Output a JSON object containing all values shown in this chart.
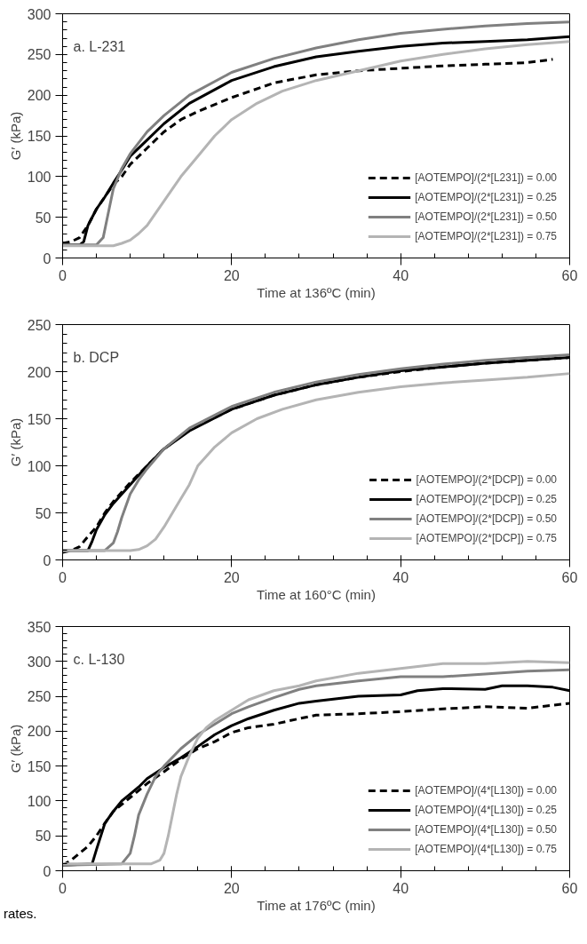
{
  "chart_data": [
    {
      "type": "line",
      "xlabel": "Time at 136ºC (min)",
      "ylabel": "G′ (kPa)",
      "annotations": [
        "a. L-231"
      ],
      "xlim": [
        0,
        60
      ],
      "xticks": [
        0,
        20,
        40,
        60
      ],
      "ylim": [
        0,
        300
      ],
      "yticks": [
        0,
        50,
        100,
        150,
        200,
        250,
        300
      ],
      "grid": false,
      "legend": "bottom right",
      "marker": "none",
      "series": [
        {
          "name": "[AOTEMPO]/(2*[L231]) = 0.00",
          "color": "#000000",
          "line_style": "dashed",
          "x": [
            0,
            1,
            2,
            3,
            4,
            5,
            6,
            7,
            8,
            10,
            12,
            14,
            16,
            20,
            25,
            30,
            35,
            40,
            45,
            50,
            55,
            58
          ],
          "values": [
            18,
            20,
            25,
            40,
            60,
            75,
            90,
            100,
            115,
            135,
            155,
            170,
            180,
            197,
            215,
            225,
            230,
            233,
            236,
            238,
            240,
            244
          ]
        },
        {
          "name": "[AOTEMPO]/(2*[L231]) = 0.25",
          "color": "#000000",
          "line_style": "solid",
          "x": [
            0,
            2,
            2.5,
            3,
            4,
            5,
            6,
            7,
            8,
            10,
            12,
            15,
            20,
            25,
            30,
            35,
            40,
            45,
            50,
            55,
            60
          ],
          "values": [
            16,
            16,
            20,
            40,
            60,
            75,
            92,
            108,
            125,
            145,
            165,
            190,
            218,
            235,
            247,
            254,
            260,
            264,
            266,
            268,
            272
          ]
        },
        {
          "name": "[AOTEMPO]/(2*[L231]) = 0.50",
          "color": "#808080",
          "line_style": "solid",
          "x": [
            0,
            4,
            4.8,
            5.5,
            6,
            7,
            8,
            10,
            12,
            15,
            20,
            25,
            30,
            35,
            40,
            45,
            50,
            55,
            60
          ],
          "values": [
            16,
            16,
            25,
            60,
            85,
            110,
            128,
            155,
            175,
            200,
            228,
            245,
            258,
            268,
            276,
            281,
            285,
            288,
            290
          ]
        },
        {
          "name": "[AOTEMPO]/(2*[L231]) = 0.75",
          "color": "#b4b4b4",
          "line_style": "solid",
          "x": [
            0,
            6,
            7,
            8,
            9,
            10,
            11,
            12,
            14,
            16,
            18,
            20,
            23,
            26,
            30,
            35,
            40,
            45,
            50,
            55,
            60
          ],
          "values": [
            15,
            15,
            18,
            22,
            30,
            40,
            55,
            70,
            100,
            125,
            150,
            170,
            190,
            205,
            218,
            230,
            242,
            250,
            257,
            262,
            266
          ]
        }
      ]
    },
    {
      "type": "line",
      "xlabel": "Time at 160°C (min)",
      "ylabel": "G′ (kPa)",
      "annotations": [
        "b. DCP"
      ],
      "xlim": [
        0,
        60
      ],
      "xticks": [
        0,
        20,
        40,
        60
      ],
      "ylim": [
        0,
        250
      ],
      "yticks": [
        0,
        50,
        100,
        150,
        200,
        250
      ],
      "grid": false,
      "legend": "bottom right",
      "marker": "none",
      "series": [
        {
          "name": "[AOTEMPO]/(2*[DCP]) = 0.00",
          "color": "#000000",
          "line_style": "dashed",
          "x": [
            0,
            1,
            2,
            3,
            4,
            5,
            6,
            8,
            10,
            12,
            15,
            20,
            25,
            30,
            35,
            40,
            45,
            50,
            55,
            60
          ],
          "values": [
            8,
            10,
            14,
            25,
            35,
            50,
            62,
            82,
            100,
            118,
            138,
            160,
            175,
            186,
            194,
            200,
            205,
            209,
            212,
            215
          ]
        },
        {
          "name": "[AOTEMPO]/(2*[DCP]) = 0.25",
          "color": "#000000",
          "line_style": "solid",
          "x": [
            0,
            3,
            3.5,
            4,
            5,
            6,
            8,
            10,
            12,
            15,
            20,
            25,
            30,
            35,
            40,
            45,
            50,
            55,
            60
          ],
          "values": [
            10,
            10,
            20,
            32,
            48,
            60,
            80,
            100,
            118,
            137,
            160,
            175,
            186,
            194,
            201,
            205,
            209,
            212,
            215
          ]
        },
        {
          "name": "[AOTEMPO]/(2*[DCP]) = 0.50",
          "color": "#808080",
          "line_style": "solid",
          "x": [
            0,
            5,
            6,
            6.5,
            7,
            8,
            9,
            10,
            12,
            15,
            20,
            25,
            30,
            35,
            40,
            45,
            50,
            55,
            60
          ],
          "values": [
            10,
            10,
            18,
            30,
            45,
            70,
            85,
            97,
            118,
            140,
            163,
            178,
            189,
            197,
            203,
            208,
            212,
            215,
            218
          ]
        },
        {
          "name": "[AOTEMPO]/(2*[DCP]) = 0.75",
          "color": "#b4b4b4",
          "line_style": "solid",
          "x": [
            0,
            8,
            9,
            10,
            11,
            12,
            13,
            14,
            15,
            16,
            18,
            20,
            23,
            26,
            30,
            35,
            40,
            45,
            50,
            55,
            60
          ],
          "values": [
            10,
            10,
            11,
            15,
            22,
            35,
            50,
            65,
            80,
            100,
            120,
            135,
            150,
            160,
            170,
            178,
            184,
            188,
            191,
            194,
            198
          ]
        }
      ]
    },
    {
      "type": "line",
      "xlabel": "Time at 176ºC (min)",
      "ylabel": "G′ (kPa)",
      "annotations": [
        "c. L-130",
        "rates."
      ],
      "xlim": [
        0,
        60
      ],
      "xticks": [
        0,
        20,
        40,
        60
      ],
      "ylim": [
        0,
        350
      ],
      "yticks": [
        0,
        50,
        100,
        150,
        200,
        250,
        300,
        350
      ],
      "grid": false,
      "legend": "bottom right",
      "marker": "none",
      "series": [
        {
          "name": "[AOTEMPO]/(4*[L130]) = 0.00",
          "color": "#000000",
          "line_style": "dashed",
          "x": [
            0,
            1,
            2,
            3,
            4,
            5,
            6,
            7,
            8,
            10,
            12,
            14,
            16,
            18,
            20,
            22,
            25,
            28,
            30,
            35,
            40,
            45,
            50,
            55,
            60
          ],
          "values": [
            8,
            15,
            25,
            35,
            50,
            68,
            85,
            95,
            105,
            125,
            142,
            160,
            175,
            185,
            198,
            205,
            210,
            218,
            223,
            225,
            228,
            232,
            235,
            233,
            240
          ]
        },
        {
          "name": "[AOTEMPO]/(4*[L130]) = 0.25",
          "color": "#000000",
          "line_style": "solid",
          "x": [
            0,
            3.5,
            4,
            5,
            6,
            7,
            8,
            9,
            10,
            12,
            14,
            16,
            18,
            20,
            22,
            25,
            28,
            30,
            35,
            40,
            42,
            45,
            50,
            52,
            55,
            58,
            60
          ],
          "values": [
            8,
            10,
            30,
            68,
            85,
            100,
            110,
            120,
            132,
            148,
            162,
            178,
            195,
            208,
            218,
            230,
            240,
            243,
            250,
            252,
            258,
            261,
            260,
            265,
            265,
            263,
            258
          ]
        },
        {
          "name": "[AOTEMPO]/(4*[L130]) = 0.50",
          "color": "#808080",
          "line_style": "solid",
          "x": [
            0,
            7,
            8,
            8.5,
            9,
            10,
            11,
            12,
            14,
            16,
            18,
            20,
            22,
            25,
            28,
            30,
            35,
            40,
            45,
            50,
            55,
            60
          ],
          "values": [
            8,
            10,
            25,
            50,
            80,
            110,
            135,
            150,
            175,
            195,
            210,
            225,
            235,
            248,
            260,
            265,
            272,
            278,
            278,
            282,
            286,
            288
          ]
        },
        {
          "name": "[AOTEMPO]/(4*[L130]) = 0.75",
          "color": "#b4b4b4",
          "line_style": "solid",
          "x": [
            0,
            10.5,
            11.5,
            12,
            12.5,
            13,
            13.5,
            14,
            15,
            16,
            17,
            18,
            20,
            22,
            25,
            28,
            30,
            35,
            40,
            45,
            50,
            55,
            60
          ],
          "values": [
            10,
            10,
            15,
            25,
            50,
            80,
            110,
            135,
            165,
            190,
            205,
            215,
            230,
            245,
            258,
            265,
            272,
            283,
            290,
            297,
            297,
            300,
            298
          ]
        }
      ]
    }
  ]
}
